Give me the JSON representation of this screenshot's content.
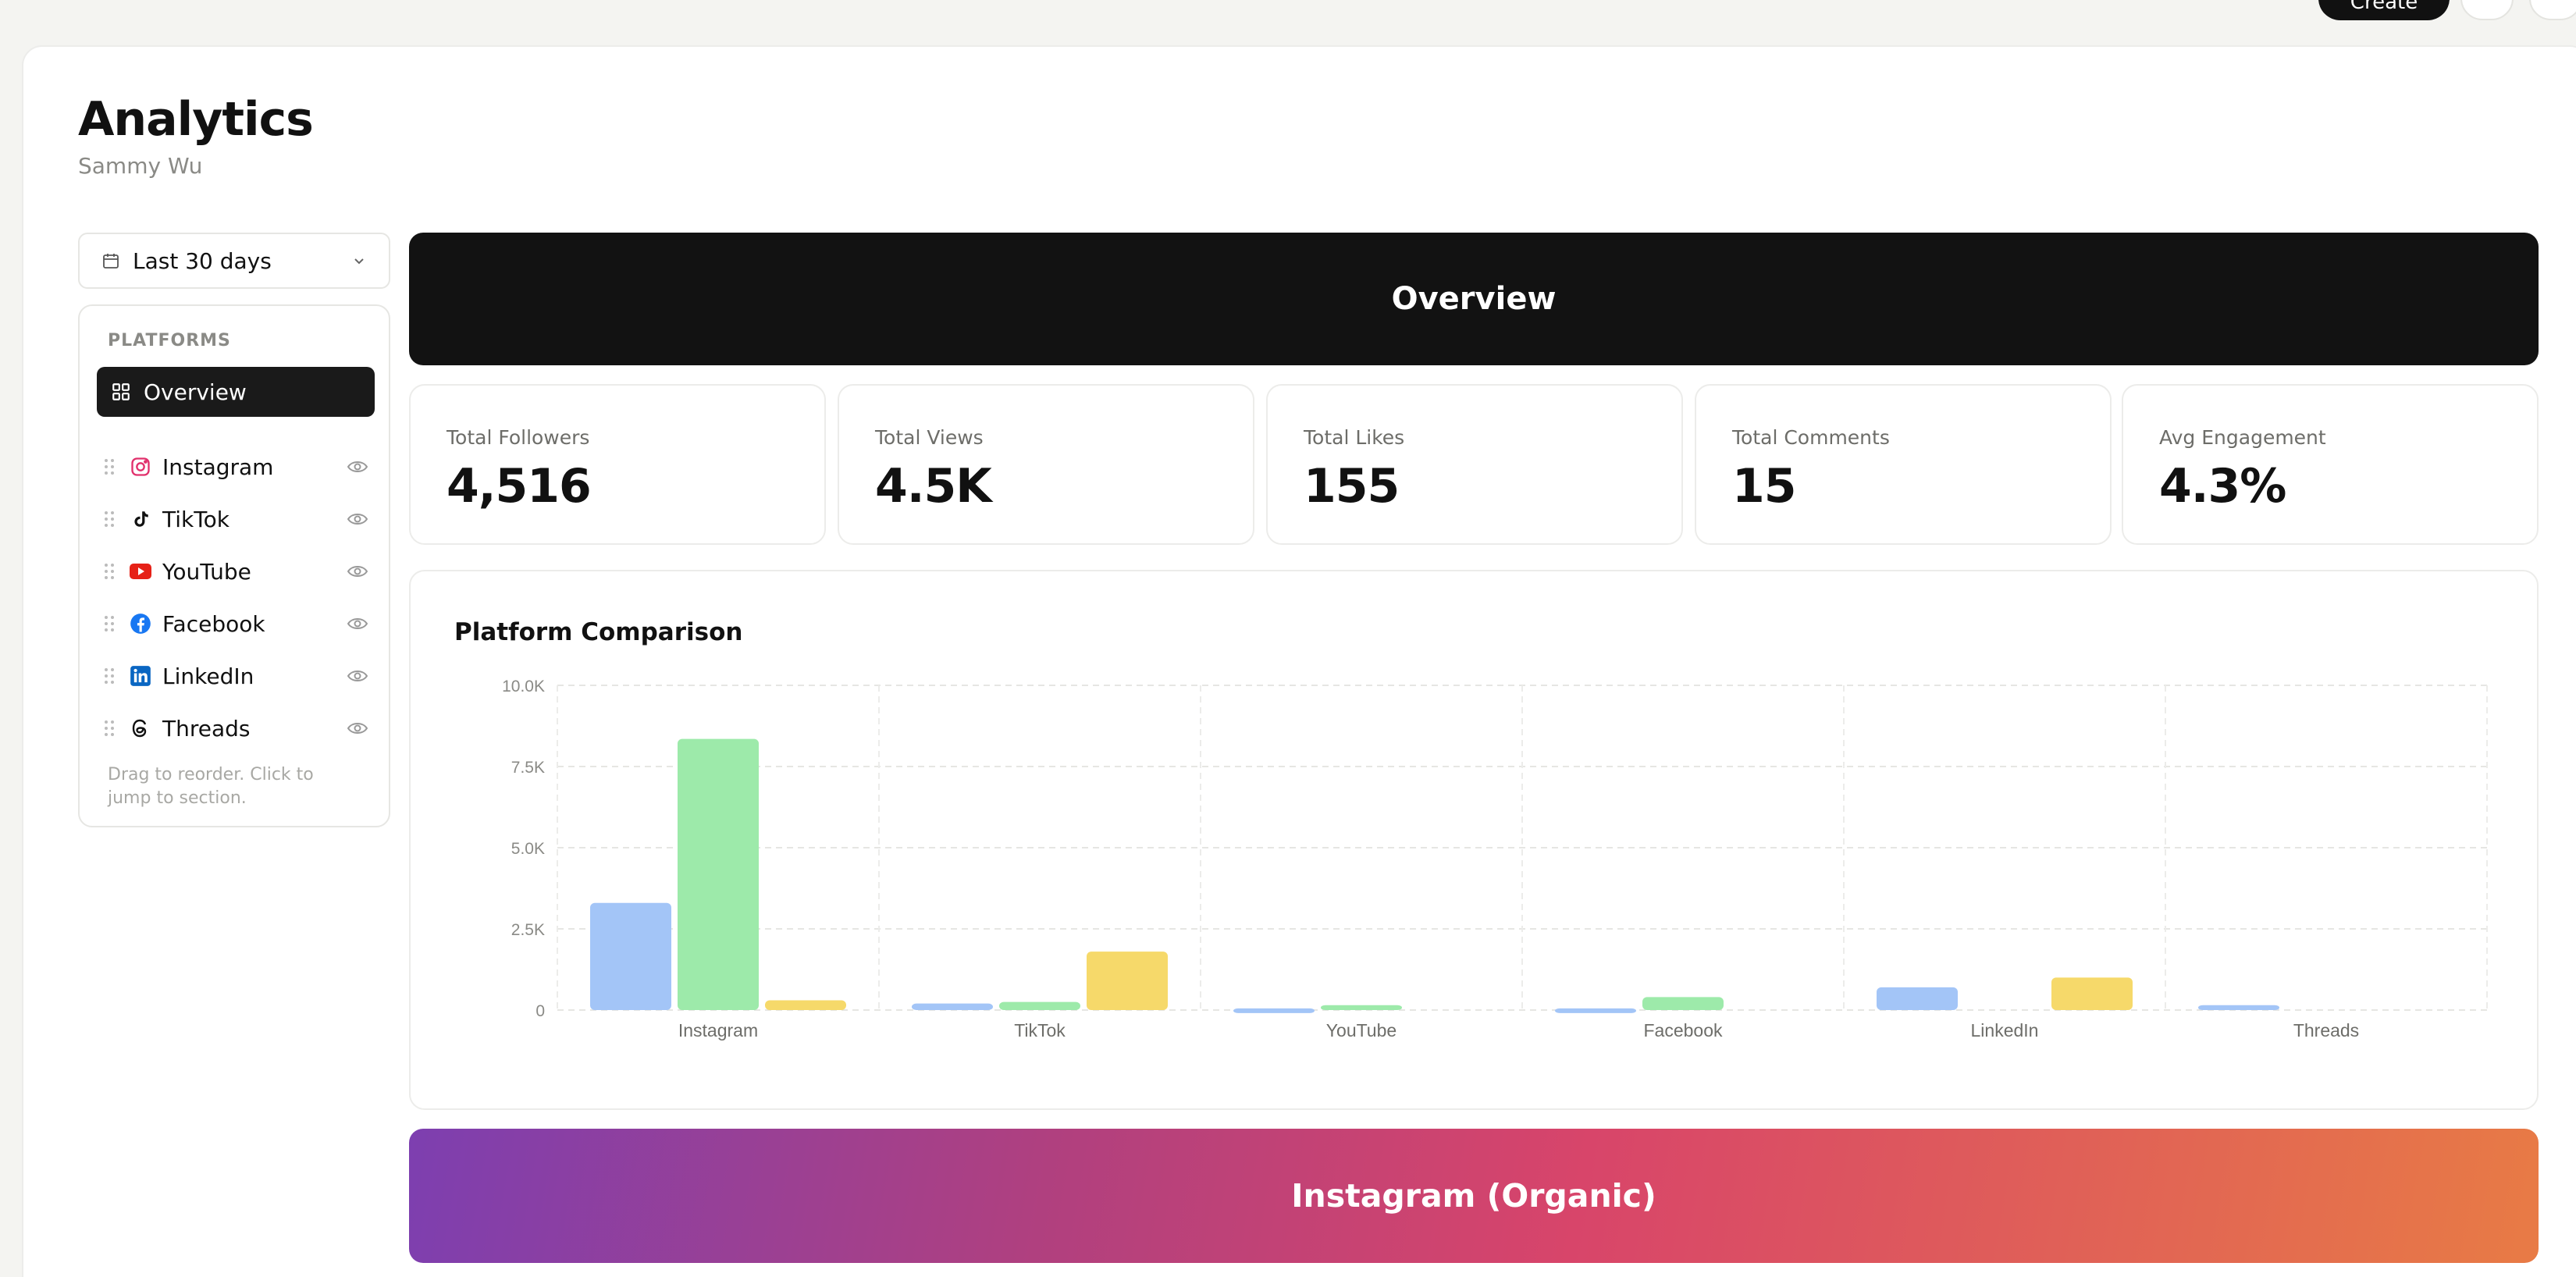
{
  "topbar": {
    "create_label": "Create"
  },
  "page": {
    "title": "Analytics",
    "subtitle": "Sammy Wu"
  },
  "date_range": {
    "value": "Last 30 days"
  },
  "platforms": {
    "heading": "PLATFORMS",
    "overview_label": "Overview",
    "items": [
      {
        "label": "Instagram",
        "icon": "instagram-icon",
        "color": "#e1306c"
      },
      {
        "label": "TikTok",
        "icon": "tiktok-icon",
        "color": "#111111"
      },
      {
        "label": "YouTube",
        "icon": "youtube-icon",
        "color": "#e62117"
      },
      {
        "label": "Facebook",
        "icon": "facebook-icon",
        "color": "#1877f2"
      },
      {
        "label": "LinkedIn",
        "icon": "linkedin-icon",
        "color": "#0a66c2"
      },
      {
        "label": "Threads",
        "icon": "threads-icon",
        "color": "#111111"
      }
    ],
    "hint": "Drag to reorder. Click to jump to section."
  },
  "overview_banner": {
    "title": "Overview"
  },
  "stats": [
    {
      "label": "Total Followers",
      "value": "4,516"
    },
    {
      "label": "Total Views",
      "value": "4.5K"
    },
    {
      "label": "Total Likes",
      "value": "155"
    },
    {
      "label": "Total Comments",
      "value": "15"
    },
    {
      "label": "Avg Engagement",
      "value": "4.3%"
    }
  ],
  "chart_title": "Platform Comparison",
  "chart_data": {
    "type": "bar",
    "categories": [
      "Instagram",
      "TikTok",
      "YouTube",
      "Facebook",
      "LinkedIn",
      "Threads"
    ],
    "series": [
      {
        "values": [
          3300,
          200,
          50,
          50,
          700,
          150
        ],
        "color": "#a3c5f7"
      },
      {
        "values": [
          8350,
          250,
          150,
          400,
          0,
          0
        ],
        "color": "#9deaaa"
      },
      {
        "values": [
          300,
          1800,
          0,
          0,
          1000,
          0
        ],
        "color": "#f6d96a"
      }
    ],
    "ylim": [
      0,
      10000
    ],
    "yticks": [
      "0",
      "2.5K",
      "5.0K",
      "7.5K",
      "10.0K"
    ],
    "grid": true,
    "grid_style": "dashed"
  },
  "ig_banner": {
    "title": "Instagram (Organic)"
  },
  "colors": {
    "dark": "#121212",
    "accent_bar_blue": "#a3c5f7",
    "accent_bar_green": "#9deaaa",
    "accent_bar_yellow": "#f6d96a"
  }
}
